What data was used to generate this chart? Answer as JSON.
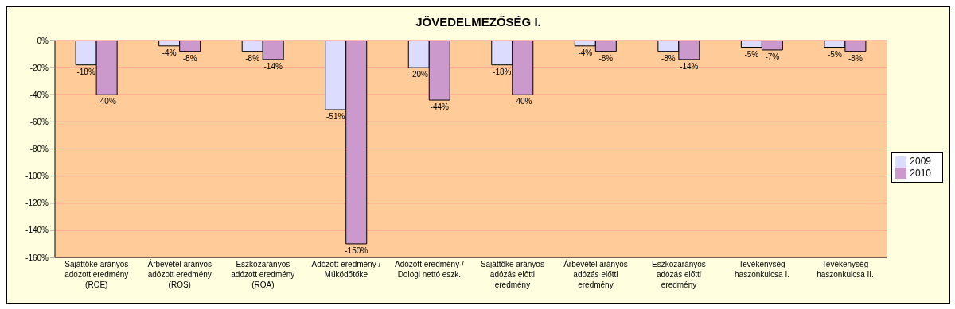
{
  "chart_data": {
    "type": "bar",
    "title": "JÖVEDELMEZŐSÉG I.",
    "categories": [
      "Sajáttőke arányos adózott eredmény (ROE)",
      "Árbevétel arányos adózott eredmény (ROS)",
      "Eszközarányos adózott eredmény (ROA)",
      "Adózott eredmény / Működőtőke",
      "Adózott eredmény / Dologi nettó eszk.",
      "Sajáttőke arányos adózás előtti eredmény",
      "Árbevétel arányos adózás előtti eredmény",
      "Eszközarányos adózás előtti eredmény",
      "Tevékenység haszonkulcsa I.",
      "Tevékenység haszonkulcsa II."
    ],
    "series": [
      {
        "name": "2009",
        "color": "#dcdcff",
        "values": [
          -18,
          -4,
          -8,
          -51,
          -20,
          -18,
          -4,
          -8,
          -5,
          -5
        ],
        "value_labels": [
          "-18%",
          "-4%",
          "-8%",
          "-51%",
          "-20%",
          "-18%",
          "-4%",
          "-8%",
          "-5%",
          "-5%"
        ]
      },
      {
        "name": "2010",
        "color": "#cc99cc",
        "values": [
          -40,
          -8,
          -14,
          -150,
          -44,
          -40,
          -8,
          -14,
          -7,
          -8
        ],
        "value_labels": [
          "-40%",
          "-8%",
          "-14%",
          "-150%",
          "-44%",
          "-40%",
          "-8%",
          "-14%",
          "-7%",
          "-8%"
        ]
      }
    ],
    "ylim": [
      -160,
      0
    ],
    "yticks": [
      {
        "value": -160,
        "label": "-160%"
      },
      {
        "value": -140,
        "label": "-140%"
      },
      {
        "value": -120,
        "label": "-120%"
      },
      {
        "value": -100,
        "label": "-100%"
      },
      {
        "value": -80,
        "label": "-80%"
      },
      {
        "value": -60,
        "label": "-60%"
      },
      {
        "value": -40,
        "label": "-40%"
      },
      {
        "value": -20,
        "label": "-20%"
      },
      {
        "value": 0,
        "label": "0%"
      }
    ],
    "grid": "y",
    "legend": "right"
  }
}
